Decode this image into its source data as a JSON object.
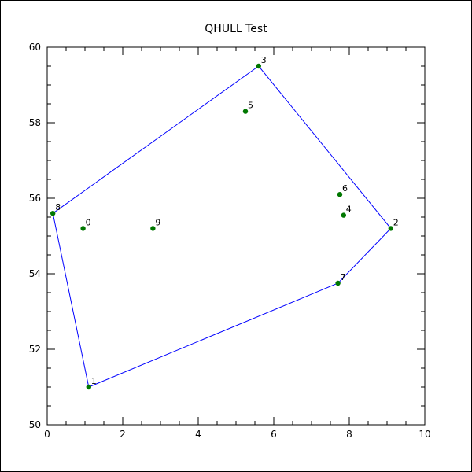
{
  "chart_data": {
    "type": "scatter",
    "title": "QHULL Test",
    "xlabel": "",
    "ylabel": "",
    "xlim": [
      0,
      10
    ],
    "ylim": [
      50,
      60
    ],
    "x_ticks": [
      0,
      2,
      4,
      6,
      8,
      10
    ],
    "y_ticks": [
      50,
      52,
      54,
      56,
      58,
      60
    ],
    "grid": false,
    "points": [
      {
        "label": "0",
        "x": 0.95,
        "y": 55.2
      },
      {
        "label": "1",
        "x": 1.1,
        "y": 51.0
      },
      {
        "label": "2",
        "x": 9.1,
        "y": 55.2
      },
      {
        "label": "3",
        "x": 5.6,
        "y": 59.5
      },
      {
        "label": "4",
        "x": 7.85,
        "y": 55.55
      },
      {
        "label": "5",
        "x": 5.25,
        "y": 58.3
      },
      {
        "label": "6",
        "x": 7.75,
        "y": 56.1
      },
      {
        "label": "7",
        "x": 7.7,
        "y": 53.75
      },
      {
        "label": "8",
        "x": 0.15,
        "y": 55.6
      },
      {
        "label": "9",
        "x": 2.8,
        "y": 55.2
      }
    ],
    "hull_order": [
      "8",
      "3",
      "2",
      "7",
      "1",
      "8"
    ],
    "colors": {
      "point": "#007700",
      "hull": "#0000ff",
      "frame": "#000000"
    }
  }
}
